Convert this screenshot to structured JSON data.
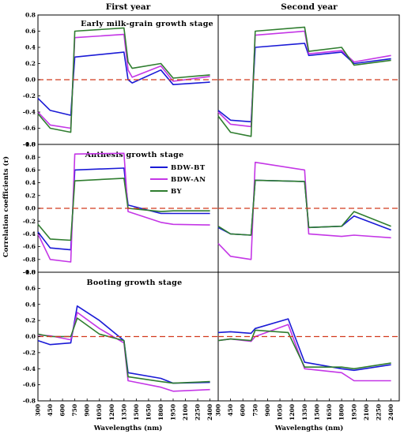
{
  "chart_data": {
    "type": "line",
    "ylabel": "Correlation coefficients (r)",
    "xlabel": "Wavelengths (nm)",
    "columns": [
      "First year",
      "Second year"
    ],
    "stages": [
      "Early milk-grain growth stage",
      "Anthesis growth stage",
      "Booting growth stage"
    ],
    "xlim": [
      300,
      2500
    ],
    "x_ticks": [
      300,
      450,
      600,
      750,
      900,
      1050,
      1200,
      1350,
      1500,
      1650,
      1800,
      1950,
      2100,
      2250,
      2400
    ],
    "ylim_top": [
      -0.8,
      0.8
    ],
    "ylim_mid": [
      -1.0,
      1.0
    ],
    "ylim_bottom": [
      -0.8,
      0.8
    ],
    "y_ticks_top": [
      "0.8",
      "0.6",
      "0.4",
      "0.2",
      "0.0",
      "-0.2",
      "-0.4",
      "-0.6",
      "-0.8"
    ],
    "y_ticks_mid": [
      "1.0",
      "0.8",
      "0.6",
      "0.4",
      "0.2",
      "0.0",
      "-0.2",
      "-0.4",
      "-0.6",
      "-0.8",
      "-1.0"
    ],
    "y_ticks_bottom": [
      "0.8",
      "0.6",
      "0.4",
      "0.2",
      "0.0",
      "-0.2",
      "-0.4",
      "-0.6",
      "-0.8"
    ],
    "reference_line": 0.0,
    "legend": {
      "placement": "inside top-center of middle-left panel",
      "entries": [
        "BDW-BT",
        "BDW-AN",
        "BY"
      ]
    },
    "colors": {
      "BDW-BT": "#1a1ad6",
      "BDW-AN": "#c436e6",
      "BY": "#2f7d2f",
      "reference": "#d23a1e"
    },
    "series_key_points": {
      "note": "Wavelength (nm), r pairs read from the figure; gaps at ~1350-1400 and ~1800-1950 nm.",
      "early_first": {
        "BDW-BT": [
          [
            300,
            -0.23
          ],
          [
            450,
            -0.38
          ],
          [
            700,
            -0.44
          ],
          [
            750,
            0.28
          ],
          [
            1350,
            0.34
          ],
          [
            1400,
            0.0
          ],
          [
            1450,
            -0.04
          ],
          [
            1800,
            0.12
          ],
          [
            1950,
            -0.06
          ],
          [
            2400,
            -0.03
          ]
        ],
        "BDW-AN": [
          [
            300,
            -0.4
          ],
          [
            450,
            -0.56
          ],
          [
            700,
            -0.6
          ],
          [
            750,
            0.52
          ],
          [
            1350,
            0.56
          ],
          [
            1400,
            0.12
          ],
          [
            1450,
            0.03
          ],
          [
            1800,
            0.17
          ],
          [
            1950,
            -0.02
          ],
          [
            2400,
            0.04
          ]
        ],
        "BY": [
          [
            300,
            -0.42
          ],
          [
            450,
            -0.6
          ],
          [
            700,
            -0.65
          ],
          [
            750,
            0.6
          ],
          [
            1350,
            0.64
          ],
          [
            1400,
            0.22
          ],
          [
            1450,
            0.14
          ],
          [
            1800,
            0.2
          ],
          [
            1950,
            0.02
          ],
          [
            2400,
            0.06
          ]
        ]
      },
      "early_second": {
        "BDW-BT": [
          [
            300,
            -0.38
          ],
          [
            450,
            -0.5
          ],
          [
            700,
            -0.52
          ],
          [
            750,
            0.4
          ],
          [
            1350,
            0.45
          ],
          [
            1400,
            0.3
          ],
          [
            1800,
            0.34
          ],
          [
            1950,
            0.2
          ],
          [
            2400,
            0.26
          ]
        ],
        "BDW-AN": [
          [
            300,
            -0.4
          ],
          [
            450,
            -0.55
          ],
          [
            700,
            -0.58
          ],
          [
            750,
            0.55
          ],
          [
            1350,
            0.6
          ],
          [
            1400,
            0.32
          ],
          [
            1800,
            0.36
          ],
          [
            1950,
            0.22
          ],
          [
            2400,
            0.3
          ]
        ],
        "BY": [
          [
            300,
            -0.45
          ],
          [
            450,
            -0.65
          ],
          [
            700,
            -0.7
          ],
          [
            750,
            0.6
          ],
          [
            1350,
            0.65
          ],
          [
            1400,
            0.35
          ],
          [
            1800,
            0.4
          ],
          [
            1950,
            0.18
          ],
          [
            2400,
            0.24
          ]
        ]
      },
      "anthesis_first": {
        "BDW-BT": [
          [
            300,
            -0.37
          ],
          [
            450,
            -0.62
          ],
          [
            700,
            -0.65
          ],
          [
            750,
            0.6
          ],
          [
            1350,
            0.63
          ],
          [
            1400,
            0.05
          ],
          [
            1800,
            -0.08
          ],
          [
            1950,
            -0.08
          ],
          [
            2400,
            -0.08
          ]
        ],
        "BDW-AN": [
          [
            300,
            -0.4
          ],
          [
            450,
            -0.8
          ],
          [
            700,
            -0.84
          ],
          [
            750,
            0.85
          ],
          [
            1350,
            0.86
          ],
          [
            1400,
            -0.05
          ],
          [
            1800,
            -0.22
          ],
          [
            1950,
            -0.25
          ],
          [
            2400,
            -0.26
          ]
        ],
        "BY": [
          [
            300,
            -0.25
          ],
          [
            450,
            -0.48
          ],
          [
            700,
            -0.5
          ],
          [
            750,
            0.43
          ],
          [
            1350,
            0.47
          ],
          [
            1400,
            0.0
          ],
          [
            1800,
            -0.05
          ],
          [
            1950,
            -0.04
          ],
          [
            2400,
            -0.04
          ]
        ]
      },
      "anthesis_second": {
        "BDW-BT": [
          [
            300,
            -0.3
          ],
          [
            450,
            -0.4
          ],
          [
            700,
            -0.42
          ],
          [
            750,
            0.44
          ],
          [
            1350,
            0.42
          ],
          [
            1400,
            -0.3
          ],
          [
            1800,
            -0.28
          ],
          [
            1950,
            -0.12
          ],
          [
            2400,
            -0.34
          ]
        ],
        "BDW-AN": [
          [
            300,
            -0.55
          ],
          [
            450,
            -0.75
          ],
          [
            700,
            -0.8
          ],
          [
            750,
            0.72
          ],
          [
            1350,
            0.6
          ],
          [
            1400,
            -0.4
          ],
          [
            1800,
            -0.44
          ],
          [
            1950,
            -0.42
          ],
          [
            2400,
            -0.46
          ]
        ],
        "BY": [
          [
            300,
            -0.28
          ],
          [
            450,
            -0.4
          ],
          [
            700,
            -0.42
          ],
          [
            750,
            0.44
          ],
          [
            1350,
            0.42
          ],
          [
            1400,
            -0.3
          ],
          [
            1800,
            -0.28
          ],
          [
            1950,
            -0.05
          ],
          [
            2400,
            -0.28
          ]
        ]
      },
      "booting_first": {
        "BDW-BT": [
          [
            300,
            -0.05
          ],
          [
            450,
            -0.1
          ],
          [
            700,
            -0.08
          ],
          [
            780,
            0.38
          ],
          [
            1050,
            0.2
          ],
          [
            1350,
            -0.05
          ],
          [
            1400,
            -0.45
          ],
          [
            1800,
            -0.52
          ],
          [
            1950,
            -0.58
          ],
          [
            2400,
            -0.57
          ]
        ],
        "BDW-AN": [
          [
            300,
            0.02
          ],
          [
            450,
            0.01
          ],
          [
            700,
            -0.04
          ],
          [
            780,
            0.3
          ],
          [
            1050,
            0.1
          ],
          [
            1350,
            -0.08
          ],
          [
            1400,
            -0.55
          ],
          [
            1800,
            -0.63
          ],
          [
            1950,
            -0.68
          ],
          [
            2400,
            -0.66
          ]
        ],
        "BY": [
          [
            300,
            0.03
          ],
          [
            450,
            0.0
          ],
          [
            700,
            0.0
          ],
          [
            780,
            0.23
          ],
          [
            1050,
            0.03
          ],
          [
            1350,
            -0.05
          ],
          [
            1400,
            -0.5
          ],
          [
            1800,
            -0.56
          ],
          [
            1950,
            -0.58
          ],
          [
            2400,
            -0.56
          ]
        ]
      },
      "booting_second": {
        "BDW-BT": [
          [
            300,
            0.05
          ],
          [
            450,
            0.06
          ],
          [
            700,
            0.04
          ],
          [
            750,
            0.1
          ],
          [
            1150,
            0.22
          ],
          [
            1350,
            -0.32
          ],
          [
            1800,
            -0.4
          ],
          [
            1950,
            -0.42
          ],
          [
            2400,
            -0.35
          ]
        ],
        "BDW-AN": [
          [
            300,
            -0.05
          ],
          [
            450,
            -0.03
          ],
          [
            700,
            -0.06
          ],
          [
            750,
            0.0
          ],
          [
            1150,
            0.15
          ],
          [
            1350,
            -0.4
          ],
          [
            1800,
            -0.45
          ],
          [
            1950,
            -0.55
          ],
          [
            2400,
            -0.55
          ]
        ],
        "BY": [
          [
            300,
            -0.05
          ],
          [
            450,
            -0.03
          ],
          [
            700,
            -0.05
          ],
          [
            750,
            0.08
          ],
          [
            1150,
            0.05
          ],
          [
            1350,
            -0.38
          ],
          [
            1800,
            -0.38
          ],
          [
            1950,
            -0.4
          ],
          [
            2400,
            -0.33
          ]
        ]
      }
    }
  }
}
